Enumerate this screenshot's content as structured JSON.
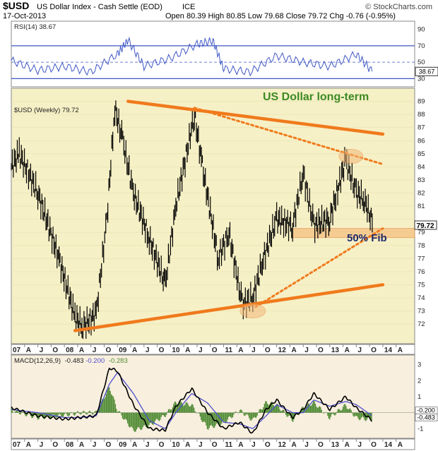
{
  "header": {
    "symbol": "$USD",
    "name": "US Dollar Index - Cash Settle (EOD)",
    "exchange": "ICE",
    "date": "17-Oct-2013",
    "ohlc": "Open 80.39  High 80.85  Low 79.68  Close 79.72  Chg -0.76 (-0.95%)",
    "open": 80.39,
    "high": 80.85,
    "low": 79.68,
    "close": 79.72,
    "chg": "-0.76 (-0.95%)",
    "watermark": "© StockCharts.com"
  },
  "colors": {
    "panel_bg": "#f6f0c6",
    "rsi_line": "#3f57c4",
    "price_bar": "#000000",
    "trend": "#f07a1c",
    "macd_line": "#000000",
    "signal_line": "#4f4fcf",
    "hist": "#4e8a33",
    "title": "#3d8a23"
  },
  "chart_data": [
    {
      "type": "line",
      "title": "RSI(14) 38.67",
      "label": "RSI(14)",
      "last_value": 38.67,
      "ylim": [
        20,
        100
      ],
      "yticks": [
        30,
        50,
        70,
        90
      ],
      "reference_lines": [
        30,
        50,
        70
      ],
      "x": [
        2007.0,
        2007.5,
        2008.0,
        2008.5,
        2009.0,
        2009.2,
        2009.5,
        2010.0,
        2010.5,
        2010.8,
        2011.0,
        2011.5,
        2012.0,
        2012.5,
        2013.0,
        2013.5,
        2013.8
      ],
      "values": [
        52,
        40,
        45,
        38,
        60,
        77,
        45,
        55,
        72,
        76,
        42,
        38,
        58,
        50,
        45,
        60,
        38.67
      ]
    },
    {
      "type": "line",
      "subtype": "ohlc-weekly",
      "title": "US Dollar long-term",
      "label": "$USD (Weekly) 79.72",
      "last_value": 79.72,
      "ylim": [
        70.5,
        90
      ],
      "yticks": [
        72,
        73,
        74,
        75,
        76,
        77,
        78,
        79,
        80,
        81,
        82,
        83,
        84,
        85,
        86,
        87,
        88,
        89
      ],
      "x": [
        2007.0,
        2007.15,
        2007.5,
        2007.9,
        2008.2,
        2008.35,
        2008.6,
        2008.8,
        2008.95,
        2009.1,
        2009.3,
        2009.6,
        2009.9,
        2010.1,
        2010.45,
        2010.6,
        2010.9,
        2011.1,
        2011.35,
        2011.55,
        2011.75,
        2012.0,
        2012.3,
        2012.5,
        2012.7,
        2013.0,
        2013.3,
        2013.5,
        2013.65,
        2013.8
      ],
      "values": [
        84,
        85,
        82,
        77,
        72.5,
        71.8,
        72.8,
        80,
        88.5,
        86,
        82,
        78.5,
        75,
        81,
        88,
        84,
        77,
        79,
        73.5,
        74,
        77,
        80,
        79.5,
        83.5,
        79.5,
        80,
        84.5,
        82,
        81.5,
        79.72
      ],
      "annotations": [
        {
          "text": "US Dollar long-term"
        },
        {
          "text": "50% Fib",
          "y": 79
        }
      ],
      "trendlines": [
        {
          "style": "solid",
          "from": [
            2009.2,
            89
          ],
          "to": [
            2014.0,
            86.5
          ]
        },
        {
          "style": "dotted",
          "from": [
            2010.45,
            88.5
          ],
          "to": [
            2014.0,
            84.2
          ]
        },
        {
          "style": "solid",
          "from": [
            2008.2,
            71.5
          ],
          "to": [
            2014.0,
            75
          ]
        },
        {
          "style": "dotted",
          "from": [
            2011.6,
            73.3
          ],
          "to": [
            2014.0,
            79.3
          ]
        }
      ],
      "fib_band": [
        78.6,
        79.3
      ]
    },
    {
      "type": "line",
      "title": "MACD(12,26,9) -0.483, -0.200, -0.283",
      "label": "MACD(12,26,9)",
      "readout": [
        "-0.483",
        "-0.200",
        "-0.283"
      ],
      "macd": -0.483,
      "signal": -0.2,
      "histogram": -0.283,
      "ylim": [
        -1.6,
        3.6
      ],
      "yticks": [
        -1,
        0,
        1,
        2,
        3
      ],
      "x": [
        2007.0,
        2007.5,
        2008.0,
        2008.3,
        2008.6,
        2008.85,
        2009.0,
        2009.3,
        2009.6,
        2009.9,
        2010.1,
        2010.4,
        2010.7,
        2011.0,
        2011.3,
        2011.55,
        2011.8,
        2012.0,
        2012.3,
        2012.5,
        2012.7,
        2013.0,
        2013.3,
        2013.5,
        2013.8
      ],
      "macd_values": [
        0.3,
        -0.2,
        -0.4,
        -0.3,
        -0.2,
        2.8,
        2.6,
        0.5,
        -1.0,
        -1.1,
        0.4,
        1.5,
        0.0,
        -1.0,
        -0.6,
        -1.3,
        0.2,
        0.8,
        -0.3,
        0.2,
        1.2,
        0.2,
        1.0,
        0.3,
        -0.483
      ],
      "signal_values": [
        0.2,
        0.0,
        -0.3,
        -0.3,
        -0.2,
        1.8,
        2.5,
        1.2,
        -0.5,
        -1.0,
        0.0,
        1.2,
        0.6,
        -0.6,
        -0.7,
        -1.0,
        -0.2,
        0.5,
        0.0,
        0.0,
        0.8,
        0.4,
        0.7,
        0.5,
        -0.2
      ],
      "side_labels": [
        "-0.200",
        "-0.483"
      ]
    }
  ],
  "x_axis": {
    "labels": [
      "07",
      "A",
      "J",
      "O",
      "08",
      "A",
      "J",
      "O",
      "09",
      "A",
      "J",
      "O",
      "10",
      "A",
      "J",
      "O",
      "11",
      "A",
      "J",
      "O",
      "12",
      "A",
      "J",
      "O",
      "13",
      "A",
      "J",
      "O",
      "14",
      "A"
    ],
    "bold": [
      "07",
      "08",
      "09",
      "10",
      "11",
      "12",
      "13",
      "14"
    ]
  }
}
